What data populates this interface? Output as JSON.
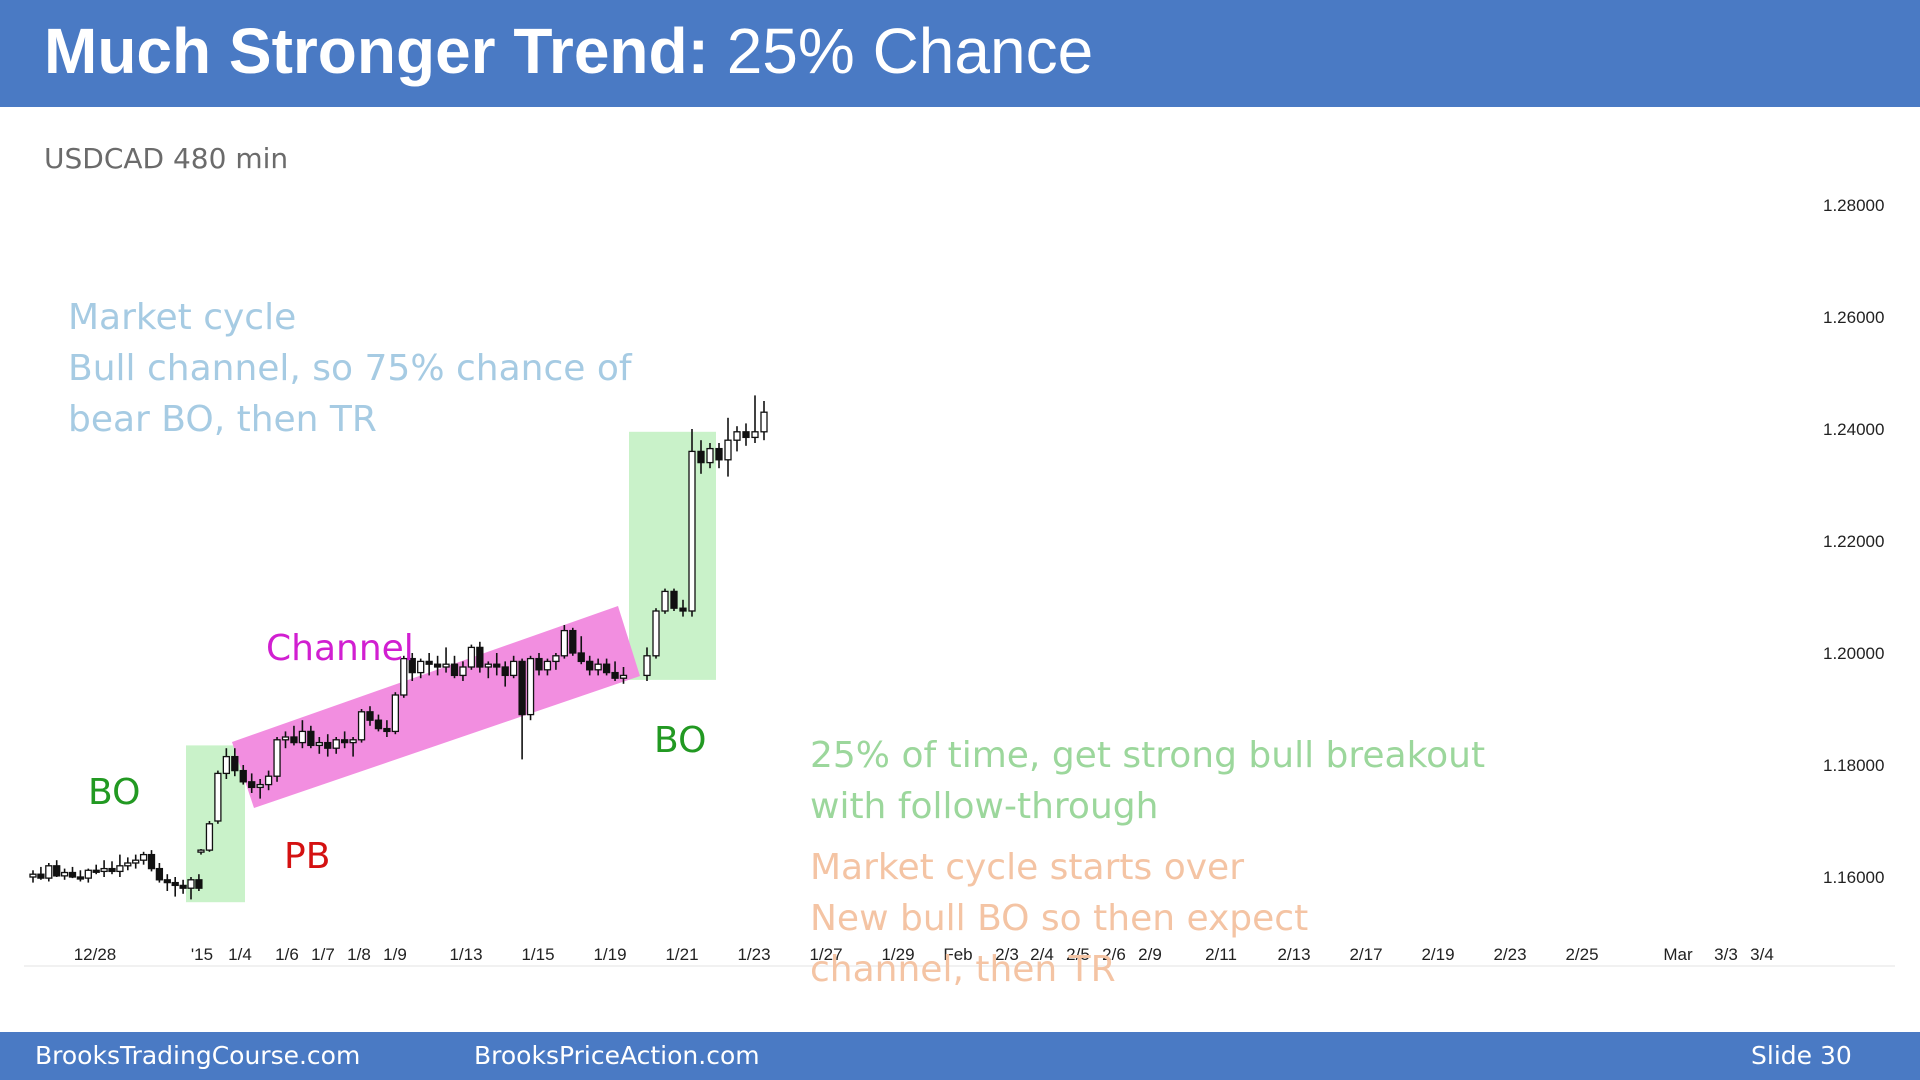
{
  "header": {
    "title_bold": "Much Stronger Trend:",
    "title_rest": " 25% Chance"
  },
  "chart_data": {
    "type": "candlestick",
    "title": "USDCAD 480 min",
    "y_ticks": [
      "1.28000",
      "1.26000",
      "1.24000",
      "1.22000",
      "1.20000",
      "1.18000",
      "1.16000"
    ],
    "y_tick_values": [
      1.28,
      1.26,
      1.24,
      1.22,
      1.2,
      1.18,
      1.16
    ],
    "ylim": [
      1.1515,
      1.2835
    ],
    "x_ticks": [
      "12/28",
      "'15",
      "1/4",
      "1/6",
      "1/7",
      "1/8",
      "1/9",
      "1/13",
      "1/15",
      "1/19",
      "1/21",
      "1/23",
      "1/27",
      "1/29",
      "Feb",
      "2/3",
      "2/4",
      "2/5",
      "2/6",
      "2/9",
      "2/11",
      "2/13",
      "2/17",
      "2/19",
      "2/23",
      "2/25",
      "Mar",
      "3/3",
      "3/4"
    ],
    "bars": [
      [
        1.16,
        1.1612,
        1.159,
        1.1605
      ],
      [
        1.1605,
        1.1618,
        1.1595,
        1.1598
      ],
      [
        1.1598,
        1.1625,
        1.1592,
        1.162
      ],
      [
        1.162,
        1.163,
        1.16,
        1.1602
      ],
      [
        1.1602,
        1.1615,
        1.1595,
        1.1608
      ],
      [
        1.1608,
        1.1618,
        1.1598,
        1.16
      ],
      [
        1.16,
        1.1612,
        1.1592,
        1.1598
      ],
      [
        1.1598,
        1.1615,
        1.159,
        1.1612
      ],
      [
        1.1612,
        1.1622,
        1.1605,
        1.161
      ],
      [
        1.161,
        1.163,
        1.16,
        1.1615
      ],
      [
        1.1615,
        1.1628,
        1.1605,
        1.161
      ],
      [
        1.161,
        1.164,
        1.16,
        1.162
      ],
      [
        1.162,
        1.1635,
        1.1612,
        1.1625
      ],
      [
        1.1625,
        1.164,
        1.1615,
        1.163
      ],
      [
        1.163,
        1.1645,
        1.1622,
        1.164
      ],
      [
        1.164,
        1.1648,
        1.161,
        1.1615
      ],
      [
        1.1615,
        1.1625,
        1.159,
        1.1595
      ],
      [
        1.1595,
        1.1605,
        1.1575,
        1.159
      ],
      [
        1.159,
        1.16,
        1.1565,
        1.1585
      ],
      [
        1.1585,
        1.1595,
        1.157,
        1.158
      ],
      [
        1.158,
        1.16,
        1.156,
        1.1595
      ],
      [
        1.1595,
        1.1605,
        1.1575,
        1.158
      ],
      [
        1.1645,
        1.165,
        1.164,
        1.1648
      ],
      [
        1.1648,
        1.17,
        1.1645,
        1.1695
      ],
      [
        1.17,
        1.179,
        1.1695,
        1.1785
      ],
      [
        1.1785,
        1.183,
        1.1775,
        1.1815
      ],
      [
        1.1815,
        1.183,
        1.178,
        1.179
      ],
      [
        1.179,
        1.18,
        1.1765,
        1.177
      ],
      [
        1.177,
        1.1785,
        1.175,
        1.176
      ],
      [
        1.176,
        1.1775,
        1.174,
        1.1765
      ],
      [
        1.1765,
        1.179,
        1.1755,
        1.178
      ],
      [
        1.178,
        1.185,
        1.177,
        1.1845
      ],
      [
        1.1845,
        1.186,
        1.183,
        1.185
      ],
      [
        1.185,
        1.187,
        1.1835,
        1.184
      ],
      [
        1.184,
        1.188,
        1.183,
        1.186
      ],
      [
        1.186,
        1.187,
        1.183,
        1.1835
      ],
      [
        1.1835,
        1.185,
        1.182,
        1.184
      ],
      [
        1.184,
        1.1855,
        1.1815,
        1.183
      ],
      [
        1.183,
        1.185,
        1.182,
        1.1845
      ],
      [
        1.1845,
        1.186,
        1.183,
        1.184
      ],
      [
        1.184,
        1.185,
        1.1815,
        1.1845
      ],
      [
        1.1845,
        1.19,
        1.184,
        1.1895
      ],
      [
        1.1895,
        1.1905,
        1.187,
        1.188
      ],
      [
        1.188,
        1.189,
        1.186,
        1.1865
      ],
      [
        1.1865,
        1.188,
        1.185,
        1.186
      ],
      [
        1.186,
        1.193,
        1.1855,
        1.1925
      ],
      [
        1.1925,
        1.1995,
        1.192,
        1.199
      ],
      [
        1.199,
        1.2,
        1.195,
        1.1965
      ],
      [
        1.1965,
        1.199,
        1.1955,
        1.1985
      ],
      [
        1.1985,
        1.2,
        1.196,
        1.198
      ],
      [
        1.198,
        1.1995,
        1.196,
        1.1975
      ],
      [
        1.1975,
        1.201,
        1.1965,
        1.198
      ],
      [
        1.198,
        1.1995,
        1.1955,
        1.196
      ],
      [
        1.196,
        1.1985,
        1.195,
        1.1975
      ],
      [
        1.1975,
        1.2015,
        1.197,
        1.201
      ],
      [
        1.201,
        1.202,
        1.1965,
        1.1975
      ],
      [
        1.1975,
        1.1985,
        1.1955,
        1.198
      ],
      [
        1.198,
        1.2,
        1.196,
        1.1975
      ],
      [
        1.1975,
        1.1985,
        1.194,
        1.196
      ],
      [
        1.196,
        1.1995,
        1.1955,
        1.1985
      ],
      [
        1.1985,
        1.199,
        1.181,
        1.189
      ],
      [
        1.189,
        1.1995,
        1.188,
        1.199
      ],
      [
        1.199,
        1.2,
        1.196,
        1.197
      ],
      [
        1.197,
        1.199,
        1.196,
        1.1985
      ],
      [
        1.1985,
        1.2,
        1.197,
        1.1995
      ],
      [
        1.1995,
        1.205,
        1.199,
        1.204
      ],
      [
        1.204,
        1.2045,
        1.1995,
        1.2
      ],
      [
        1.2,
        1.203,
        1.198,
        1.1985
      ],
      [
        1.1985,
        1.1995,
        1.196,
        1.197
      ],
      [
        1.197,
        1.199,
        1.196,
        1.198
      ],
      [
        1.198,
        1.199,
        1.196,
        1.1965
      ],
      [
        1.1965,
        1.1985,
        1.195,
        1.1955
      ],
      [
        1.1955,
        1.1975,
        1.1945,
        1.196
      ],
      [
        1.196,
        1.201,
        1.195,
        1.1995
      ],
      [
        1.1995,
        1.208,
        1.199,
        1.2075
      ],
      [
        1.2075,
        1.2115,
        1.207,
        1.211
      ],
      [
        1.211,
        1.2115,
        1.2075,
        1.208
      ],
      [
        1.208,
        1.2095,
        1.2065,
        1.2075
      ],
      [
        1.2075,
        1.24,
        1.2065,
        1.236
      ],
      [
        1.236,
        1.238,
        1.232,
        1.234
      ],
      [
        1.234,
        1.2375,
        1.233,
        1.2365
      ],
      [
        1.2365,
        1.2375,
        1.233,
        1.2345
      ],
      [
        1.2345,
        1.242,
        1.2315,
        1.238
      ],
      [
        1.238,
        1.2405,
        1.236,
        1.2395
      ],
      [
        1.2395,
        1.241,
        1.237,
        1.2385
      ],
      [
        1.2385,
        1.246,
        1.2375,
        1.2395
      ],
      [
        1.2395,
        1.245,
        1.238,
        1.243
      ]
    ]
  },
  "labels": {
    "bo_left": "BO",
    "pb": "PB",
    "channel": "Channel",
    "bo_right": "BO"
  },
  "annotations": {
    "market_cycle": [
      "Market cycle",
      "Bull channel, so 75% chance of",
      "bear BO, then TR"
    ],
    "strong_breakout": [
      "25% of time, get strong bull breakout",
      "with follow-through"
    ],
    "cycle_starts_over": [
      "Market cycle starts over",
      "New bull BO so then expect",
      "channel, then TR"
    ]
  },
  "colors": {
    "header_bg": "#4a7ac4",
    "bo_box": "#c9f2c9",
    "channel_band": "#f28ee0",
    "bo_label": "#229922",
    "pb_label": "#d41111",
    "channel_label": "#d11fd1",
    "market_cycle_text": "#a6cbe3",
    "strong_breakout_text": "#9cd79c",
    "cycle_over_text": "#f4c4a4"
  },
  "footer": {
    "left": "BrooksTradingCourse.com",
    "center": "BrooksPriceAction.com",
    "slide": "Slide 30"
  }
}
